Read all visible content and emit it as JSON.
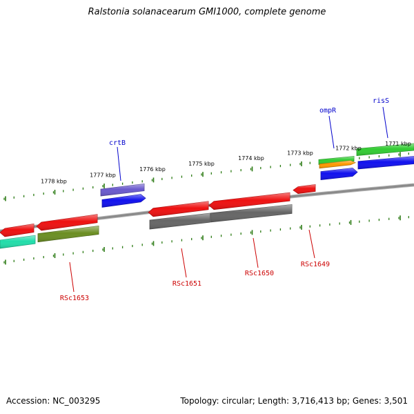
{
  "header": {
    "title": "Ralstonia solanacearum GMI1000, complete genome"
  },
  "footer": {
    "accession": "Accession: NC_003295",
    "topology": "Topology: circular; Length: 3,716,413 bp; Genes: 3,501"
  },
  "colors": {
    "backbone": "#8a8a8a",
    "tick": "#2a7a12",
    "forward_label": "#0000cc",
    "reverse_label": "#cc0000",
    "red": "#ee1111",
    "blue": "#1111ee",
    "gray": "#666666",
    "olive": "#6b8e23",
    "green": "#33cc33",
    "orange": "#ff9900",
    "purple": "#6a5acd",
    "teal": "#22ddaa"
  },
  "scale": {
    "unit": "kbp",
    "labels": [
      "1771 kbp",
      "1772 kbp",
      "1773 kbp",
      "1774 kbp",
      "1775 kbp",
      "1776 kbp",
      "1777 kbp",
      "1778 kbp"
    ]
  },
  "gene_labels": {
    "forward": [
      "ompR",
      "risS",
      "crtB"
    ],
    "reverse": [
      "RSc1649",
      "RSc1650",
      "RSc1651",
      "RSc1653"
    ]
  },
  "features": [
    {
      "id": "f-green-top",
      "color": "green"
    },
    {
      "id": "f-green-left",
      "color": "green"
    },
    {
      "id": "f-orange",
      "color": "orange"
    },
    {
      "id": "f-blue-right",
      "color": "blue"
    },
    {
      "id": "f-blue-ompr",
      "color": "blue"
    },
    {
      "id": "f-purple-crtb",
      "color": "purple"
    },
    {
      "id": "f-blue-crtb",
      "color": "blue"
    },
    {
      "id": "f-red-1649",
      "color": "red"
    },
    {
      "id": "f-red-1650",
      "color": "red"
    },
    {
      "id": "f-red-1651",
      "color": "red"
    },
    {
      "id": "f-gray-1650",
      "color": "gray"
    },
    {
      "id": "f-gray-1651",
      "color": "gray"
    },
    {
      "id": "f-red-1653",
      "color": "red"
    },
    {
      "id": "f-red-left",
      "color": "red"
    },
    {
      "id": "f-olive-1653",
      "color": "olive"
    },
    {
      "id": "f-teal-left",
      "color": "teal"
    }
  ]
}
